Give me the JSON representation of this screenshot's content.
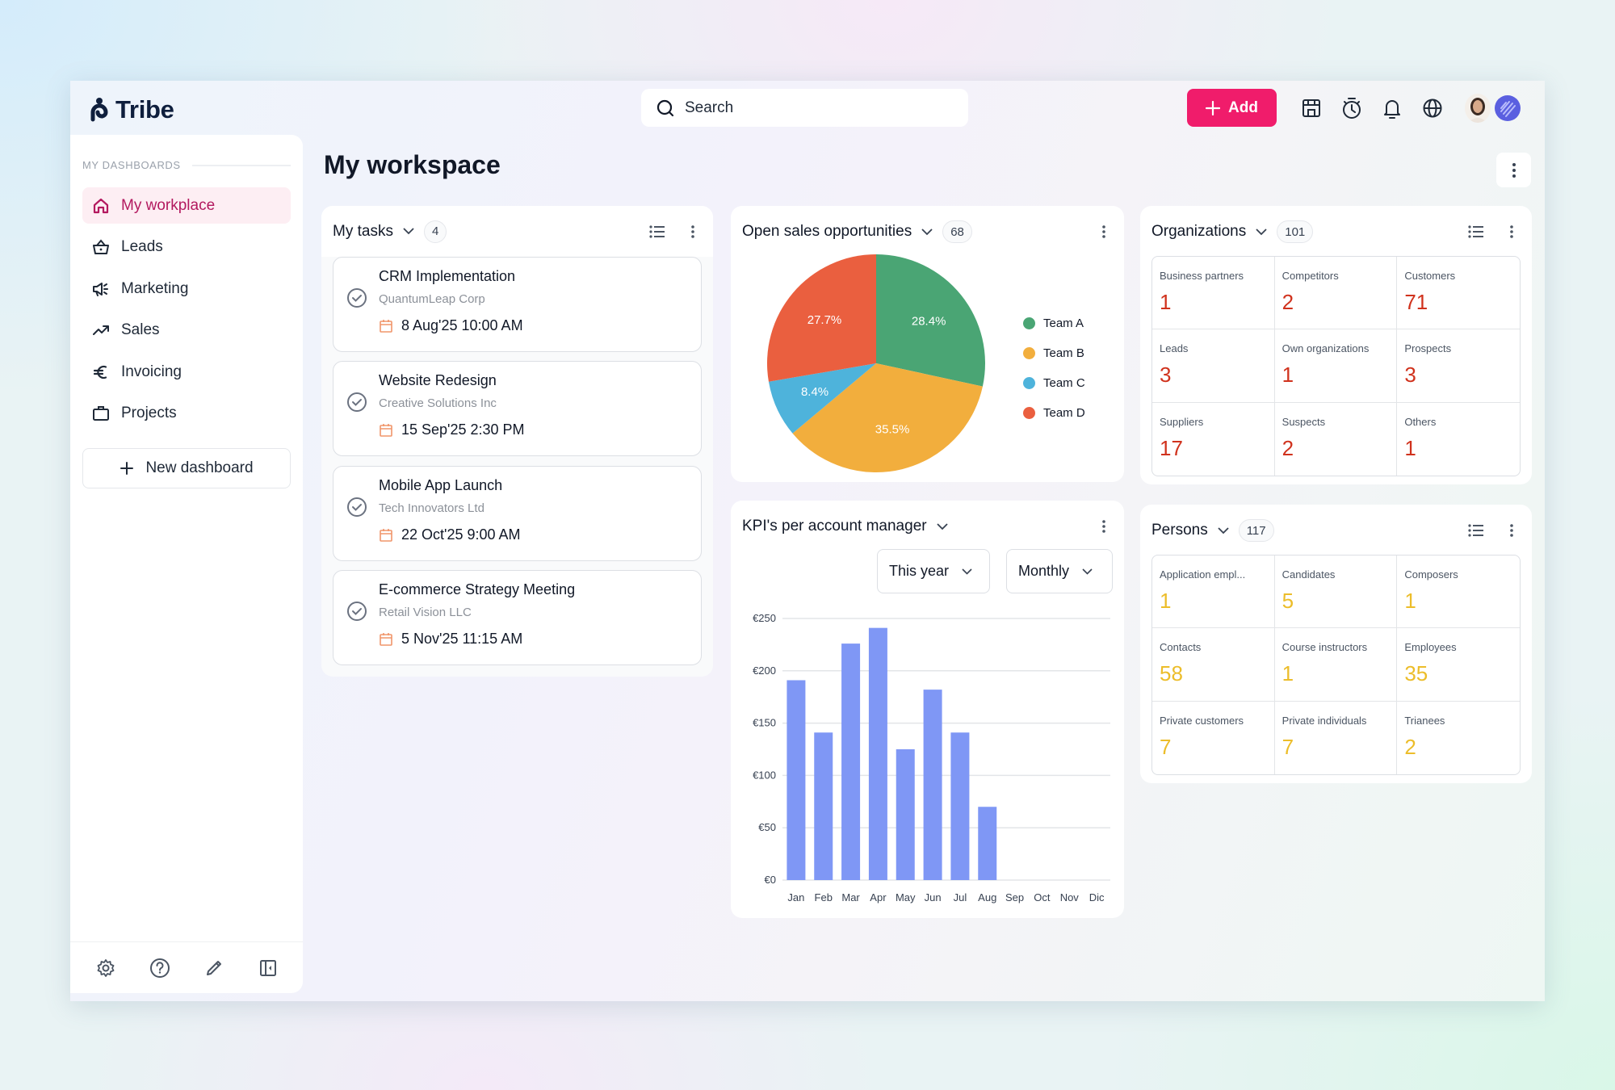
{
  "app": {
    "name": "Tribe",
    "search_placeholder": "Search",
    "add_label": "Add",
    "colors": {
      "accent": "#f01c6b",
      "brand_navy": "#0f1f3d",
      "active_nav": "#b3195f",
      "bar": "#7f97f5"
    },
    "top_icons": [
      "store-icon",
      "timer-icon",
      "bell-icon",
      "globe-icon"
    ]
  },
  "sidebar": {
    "section_label": "MY DASHBOARDS",
    "items": [
      {
        "label": "My workplace",
        "icon": "home-icon",
        "active": true
      },
      {
        "label": "Leads",
        "icon": "basket-icon"
      },
      {
        "label": "Marketing",
        "icon": "megaphone-icon"
      },
      {
        "label": "Sales",
        "icon": "trend-up-icon"
      },
      {
        "label": "Invoicing",
        "icon": "euro-icon"
      },
      {
        "label": "Projects",
        "icon": "briefcase-icon"
      }
    ],
    "new_dashboard_label": "New dashboard",
    "footer_icons": [
      "gear-icon",
      "help-icon",
      "pencil-icon",
      "collapse-sidebar-icon"
    ]
  },
  "main": {
    "title": "My workspace",
    "tasks": {
      "title": "My tasks",
      "count": "4",
      "items": [
        {
          "title": "CRM Implementation",
          "company": "QuantumLeap Corp",
          "date": "8 Aug'25 10:00 AM"
        },
        {
          "title": "Website Redesign",
          "company": "Creative Solutions Inc",
          "date": "15 Sep'25 2:30 PM"
        },
        {
          "title": "Mobile App Launch",
          "company": "Tech Innovators Ltd",
          "date": "22 Oct'25 9:00 AM"
        },
        {
          "title": "E-commerce Strategy Meeting",
          "company": "Retail Vision LLC",
          "date": "5 Nov'25 11:15 AM"
        }
      ]
    },
    "sales": {
      "title": "Open sales opportunities",
      "count": "68",
      "legend": [
        "Team A",
        "Team B",
        "Team C",
        "Team D"
      ],
      "labels": [
        "28.4%",
        "35.5%",
        "8.4%",
        "27.7%"
      ]
    },
    "kpi": {
      "title": "KPI's per account manager",
      "period": "This year",
      "interval": "Monthly",
      "y_ticks": [
        "€250",
        "€200",
        "€150",
        "€100",
        "€50",
        "€0"
      ],
      "months": [
        "Jan",
        "Feb",
        "Mar",
        "Apr",
        "May",
        "Jun",
        "Jul",
        "Aug",
        "Sep",
        "Oct",
        "Nov",
        "Dic"
      ]
    },
    "organizations": {
      "title": "Organizations",
      "count": "101",
      "cells": [
        {
          "label": "Business partners",
          "value": "1"
        },
        {
          "label": "Competitors",
          "value": "2"
        },
        {
          "label": "Customers",
          "value": "71"
        },
        {
          "label": "Leads",
          "value": "3"
        },
        {
          "label": "Own organizations",
          "value": "1"
        },
        {
          "label": "Prospects",
          "value": "3"
        },
        {
          "label": "Suppliers",
          "value": "17"
        },
        {
          "label": "Suspects",
          "value": "2"
        },
        {
          "label": "Others",
          "value": "1"
        }
      ]
    },
    "persons": {
      "title": "Persons",
      "count": "117",
      "cells": [
        {
          "label": "Application empl...",
          "value": "1"
        },
        {
          "label": "Candidates",
          "value": "5"
        },
        {
          "label": "Composers",
          "value": "1"
        },
        {
          "label": "Contacts",
          "value": "58"
        },
        {
          "label": "Course instructors",
          "value": "1"
        },
        {
          "label": "Employees",
          "value": "35"
        },
        {
          "label": "Private customers",
          "value": "7"
        },
        {
          "label": "Private individuals",
          "value": "7"
        },
        {
          "label": "Trianees",
          "value": "2"
        }
      ]
    }
  },
  "chart_data": [
    {
      "type": "pie",
      "title": "Open sales opportunities",
      "categories": [
        "Team A",
        "Team B",
        "Team C",
        "Team D"
      ],
      "values": [
        28.4,
        35.5,
        8.4,
        27.7
      ],
      "colors": [
        "#4aa574",
        "#f2ae3d",
        "#4eb3db",
        "#ea5f3f"
      ],
      "legend_position": "right"
    },
    {
      "type": "bar",
      "title": "KPI's per account manager",
      "categories": [
        "Jan",
        "Feb",
        "Mar",
        "Apr",
        "May",
        "Jun",
        "Jul",
        "Aug",
        "Sep",
        "Oct",
        "Nov",
        "Dic"
      ],
      "values": [
        191,
        141,
        226,
        241,
        125,
        182,
        141,
        70,
        0,
        0,
        0,
        0
      ],
      "xlabel": "",
      "ylabel": "",
      "ylim": [
        0,
        250
      ],
      "y_ticks": [
        0,
        50,
        100,
        150,
        200,
        250
      ],
      "tick_prefix": "€",
      "grid": true,
      "color": "#7f97f5"
    }
  ]
}
